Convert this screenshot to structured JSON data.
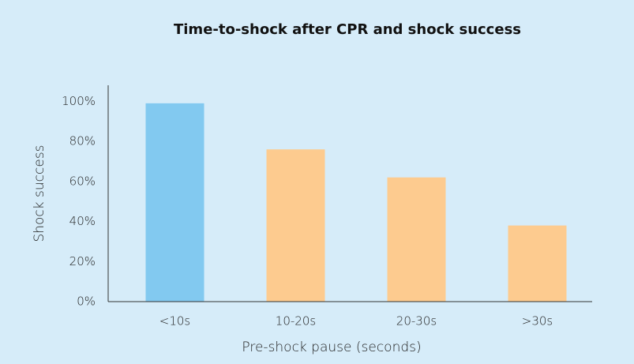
{
  "chart_data": {
    "type": "bar",
    "title": "Time-to-shock after CPR and shock success",
    "x_label": "Pre-shock pause (seconds)",
    "y_label": "Shock success",
    "categories": [
      "<10s",
      "10-20s",
      "20-30s",
      ">30s"
    ],
    "values": [
      99,
      76,
      62,
      38
    ],
    "colors": [
      "#82c9f0",
      "#fdcb8f",
      "#fdcb8f",
      "#fdcb8f"
    ],
    "ylim": [
      0,
      108
    ],
    "yticks": [
      {
        "value": 0,
        "label": "0%"
      },
      {
        "value": 20,
        "label": "20%"
      },
      {
        "value": 40,
        "label": "40%"
      },
      {
        "value": 60,
        "label": "60%"
      },
      {
        "value": 80,
        "label": "80%"
      },
      {
        "value": 100,
        "label": "100%"
      }
    ],
    "grid": false
  }
}
